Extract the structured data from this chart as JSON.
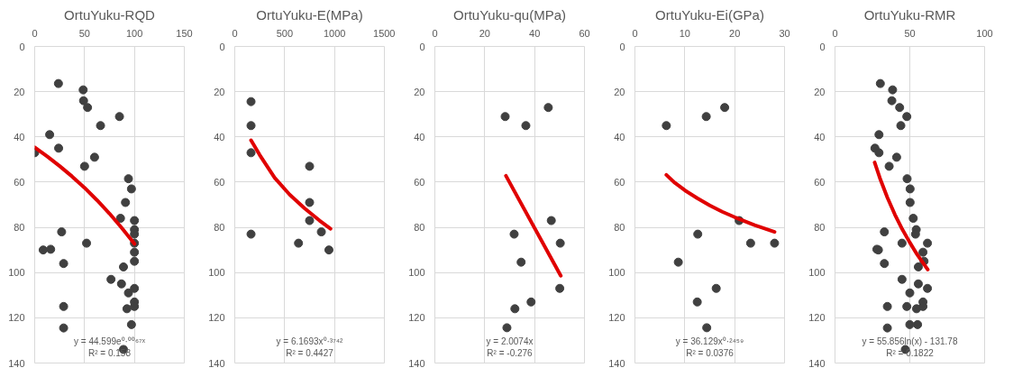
{
  "chart_data": [
    {
      "type": "scatter",
      "title": "OrtuYuku-RQD",
      "xlim": [
        0,
        150
      ],
      "xticks": [
        0,
        50,
        100,
        150
      ],
      "ylim": [
        140,
        0
      ],
      "yticks": [
        0,
        20,
        40,
        60,
        80,
        100,
        120,
        140
      ],
      "grid": true,
      "annotations": [
        "y = 44.599e⁰·⁰⁰⁶⁷ˣ",
        "R² = 0.158"
      ],
      "series": [
        {
          "marker": "circle",
          "color": "#404040",
          "x": [
            23.8,
            48.6,
            49,
            53,
            85,
            66,
            15,
            24,
            0,
            60,
            50,
            94,
            97,
            91,
            86,
            100,
            100,
            100,
            100,
            27,
            52,
            8.5,
            16,
            100,
            29,
            89,
            100,
            76.5,
            87,
            100,
            94,
            100,
            100,
            92.5,
            29,
            97,
            29,
            89
          ],
          "values": [
            16.4,
            19.2,
            24,
            27,
            31,
            35,
            39,
            45,
            47,
            49,
            53,
            58.5,
            63,
            69,
            76,
            77,
            81,
            83,
            87,
            82,
            87,
            90,
            89.7,
            91,
            96,
            97.5,
            95,
            103,
            105,
            107,
            109,
            113,
            115,
            116,
            115,
            123,
            124.5,
            134
          ]
        },
        {
          "type": "line",
          "marker": "none",
          "color": "#e00000",
          "x": [
            0,
            12.5,
            25,
            37.5,
            50,
            62.5,
            75,
            87.5,
            100
          ],
          "values": [
            44.6,
            48.6,
            52.9,
            57.5,
            62.5,
            68.0,
            73.9,
            80.4,
            87.3
          ]
        }
      ]
    },
    {
      "type": "scatter",
      "title": "OrtuYuku-E(MPa)",
      "xlim": [
        0,
        1500
      ],
      "xticks": [
        0,
        500,
        1000,
        1500
      ],
      "ylim": [
        140,
        0
      ],
      "yticks": [
        0,
        20,
        40,
        60,
        80,
        100,
        120,
        140
      ],
      "grid": true,
      "annotations": [
        "y = 6.1693x⁰·³⁷⁴²",
        "R² = 0.4427"
      ],
      "series": [
        {
          "marker": "circle",
          "color": "#404040",
          "x": [
            163,
            163,
            163,
            163,
            750,
            750,
            750,
            868,
            639,
            944
          ],
          "values": [
            24.4,
            35,
            47,
            83,
            53,
            69,
            77,
            82,
            87,
            90
          ]
        },
        {
          "type": "line",
          "marker": "none",
          "color": "#e00000",
          "x": [
            163,
            250,
            400,
            550,
            700,
            850,
            960
          ],
          "values": [
            41.5,
            48.0,
            58.1,
            65.5,
            71.6,
            77.0,
            80.6
          ]
        }
      ]
    },
    {
      "type": "scatter",
      "title": "OrtuYuku-qu(MPa)",
      "xlim": [
        0,
        60
      ],
      "xticks": [
        0,
        20,
        40,
        60
      ],
      "ylim": [
        140,
        0
      ],
      "yticks": [
        0,
        20,
        40,
        60,
        80,
        100,
        120,
        140
      ],
      "grid": true,
      "annotations": [
        "y = 2.0074x",
        "R² = -0.276"
      ],
      "series": [
        {
          "marker": "circle",
          "color": "#404040",
          "x": [
            28.2,
            36.5,
            45.5,
            46.7,
            31.8,
            50.3,
            34.6,
            50.1,
            38.6,
            32.1,
            28.9
          ],
          "values": [
            31,
            35,
            27,
            77,
            83,
            87,
            95.4,
            107,
            113,
            116,
            124.4
          ]
        },
        {
          "type": "line",
          "marker": "none",
          "color": "#e00000",
          "x": [
            28.5,
            50.5
          ],
          "values": [
            57.2,
            101.4
          ]
        }
      ]
    },
    {
      "type": "scatter",
      "title": "OrtuYuku-Ei(GPa)",
      "xlim": [
        0,
        30
      ],
      "xticks": [
        0,
        10,
        20,
        30
      ],
      "ylim": [
        140,
        0
      ],
      "yticks": [
        0,
        20,
        40,
        60,
        80,
        100,
        120,
        140
      ],
      "grid": true,
      "annotations": [
        "y = 36.129x⁰·²⁴⁵⁹",
        "R² = 0.0376"
      ],
      "series": [
        {
          "marker": "circle",
          "color": "#404040",
          "x": [
            6.3,
            14.3,
            18,
            20.9,
            12.6,
            23.2,
            28,
            8.7,
            16.3,
            12.5,
            14.4
          ],
          "values": [
            35,
            31,
            27,
            77,
            83,
            87,
            87,
            95.4,
            107,
            113,
            124.4
          ]
        },
        {
          "type": "line",
          "marker": "none",
          "color": "#e00000",
          "x": [
            6.3,
            8,
            10,
            12.5,
            15,
            17.5,
            20,
            24,
            28
          ],
          "values": [
            56.8,
            60.3,
            63.6,
            67.1,
            70.3,
            73.1,
            75.5,
            79.0,
            82.0
          ]
        }
      ]
    },
    {
      "type": "scatter",
      "title": "OrtuYuku-RMR",
      "xlim": [
        0,
        100
      ],
      "xticks": [
        0,
        50,
        100
      ],
      "ylim": [
        140,
        0
      ],
      "yticks": [
        0,
        20,
        40,
        60,
        80,
        100,
        120,
        140
      ],
      "grid": true,
      "annotations": [
        "y = 55.856ln(x) - 131.78",
        "R² = 0.1822"
      ],
      "series": [
        {
          "marker": "circle",
          "color": "#404040",
          "x": [
            30.3,
            38.5,
            38,
            43.2,
            48,
            44,
            29.4,
            26.7,
            29.4,
            41.2,
            36.2,
            48.2,
            50.2,
            50.2,
            52.3,
            54.3,
            53.8,
            33,
            44.8,
            61.8,
            29,
            28,
            58.8,
            33,
            55.7,
            59.5,
            44.8,
            55.7,
            50,
            61.8,
            58.8,
            54.5,
            58.8,
            35,
            48,
            50,
            55.2,
            35,
            47
          ],
          "values": [
            16.4,
            19.2,
            24,
            27,
            31,
            35,
            39,
            45,
            47,
            49,
            53,
            58.5,
            63,
            69,
            76,
            81,
            83,
            82,
            87,
            87,
            90,
            89.7,
            91,
            96,
            97.5,
            95,
            103,
            105,
            109,
            107,
            113,
            116,
            115,
            115,
            115,
            123,
            123,
            124.5,
            134
          ]
        },
        {
          "type": "line",
          "marker": "none",
          "color": "#e00000",
          "x": [
            26.5,
            30,
            35,
            40,
            45,
            50,
            55,
            62
          ],
          "values": [
            51.3,
            58.2,
            66.8,
            74.3,
            80.9,
            86.7,
            92.1,
            98.7
          ]
        }
      ]
    }
  ]
}
